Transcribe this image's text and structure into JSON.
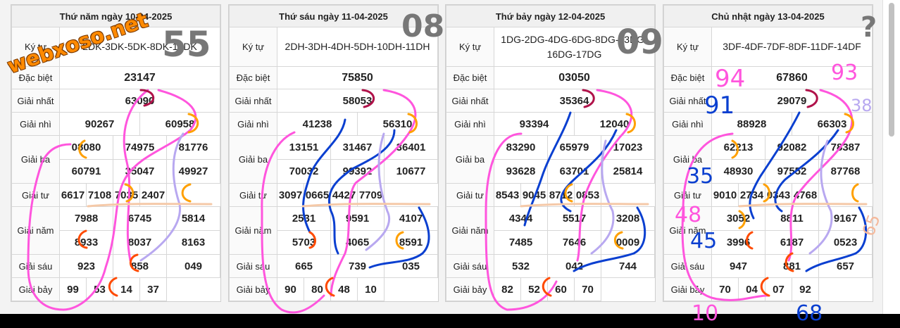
{
  "boards": [
    {
      "date": "Thứ năm ngày 10-04-2025",
      "kytu_label": "Ký tự",
      "kytu": "2DK-3DK-5DK-8DK-15DK",
      "rows": [
        {
          "label": "Đặc biệt",
          "values": [
            "23147"
          ]
        },
        {
          "label": "Giải nhất",
          "values": [
            "63090"
          ]
        },
        {
          "label": "Giải nhì",
          "values": [
            "90267",
            "60958"
          ]
        },
        {
          "label": "Giải ba",
          "values": [
            "08080",
            "74975",
            "81776",
            "60791",
            "35047",
            "49927"
          ]
        },
        {
          "label": "Giải tư",
          "values": [
            "6617",
            "7108",
            "7035",
            "2407"
          ]
        },
        {
          "label": "Giải năm",
          "values": [
            "7988",
            "6745",
            "5814",
            "8933",
            "8037",
            "8163"
          ]
        },
        {
          "label": "Giải sáu",
          "values": [
            "923",
            "858",
            "049"
          ]
        },
        {
          "label": "Giải bảy",
          "values": [
            "99",
            "53",
            "14",
            "37"
          ]
        }
      ]
    },
    {
      "date": "Thứ sáu ngày 11-04-2025",
      "kytu_label": "Ký tự",
      "kytu": "2DH-3DH-4DH-5DH-10DH-11DH",
      "rows": [
        {
          "label": "Đặc biệt",
          "values": [
            "75850"
          ]
        },
        {
          "label": "Giải nhất",
          "values": [
            "58053"
          ]
        },
        {
          "label": "Giải nhì",
          "values": [
            "41238",
            "56310"
          ]
        },
        {
          "label": "Giải ba",
          "values": [
            "13151",
            "31467",
            "36401",
            "70032",
            "99392",
            "10677"
          ]
        },
        {
          "label": "Giải tư",
          "values": [
            "3097",
            "0665",
            "4427",
            "7709"
          ]
        },
        {
          "label": "Giải năm",
          "values": [
            "2531",
            "9591",
            "4107",
            "5703",
            "4065",
            "8591"
          ]
        },
        {
          "label": "Giải sáu",
          "values": [
            "665",
            "739",
            "035"
          ]
        },
        {
          "label": "Giải bảy",
          "values": [
            "90",
            "80",
            "48",
            "10"
          ]
        }
      ]
    },
    {
      "date": "Thứ bảy ngày 12-04-2025",
      "kytu_label": "Ký tự",
      "kytu": "1DG-2DG-4DG-6DG-8DG-13DG-16DG-17DG",
      "rows": [
        {
          "label": "Đặc biệt",
          "values": [
            "03050"
          ]
        },
        {
          "label": "Giải nhất",
          "values": [
            "35364"
          ]
        },
        {
          "label": "Giải nhì",
          "values": [
            "93394",
            "12040"
          ]
        },
        {
          "label": "Giải ba",
          "values": [
            "83290",
            "65979",
            "17023",
            "93628",
            "63701",
            "25814"
          ]
        },
        {
          "label": "Giải tư",
          "values": [
            "8543",
            "9045",
            "8712",
            "0853"
          ]
        },
        {
          "label": "Giải năm",
          "values": [
            "4344",
            "5517",
            "3208",
            "7485",
            "7646",
            "0009"
          ]
        },
        {
          "label": "Giải sáu",
          "values": [
            "532",
            "042",
            "744"
          ]
        },
        {
          "label": "Giải bảy",
          "values": [
            "82",
            "52",
            "60",
            "70"
          ]
        }
      ]
    },
    {
      "date": "Chủ nhật ngày 13-04-2025",
      "kytu_label": "Ký tự",
      "kytu": "3DF-4DF-7DF-8DF-11DF-14DF",
      "rows": [
        {
          "label": "Đặc biệt",
          "values": [
            "67860"
          ]
        },
        {
          "label": "Giải nhất",
          "values": [
            "29079"
          ]
        },
        {
          "label": "Giải nhì",
          "values": [
            "88928",
            "66303"
          ]
        },
        {
          "label": "Giải ba",
          "values": [
            "62213",
            "92082",
            "78387",
            "48930",
            "97552",
            "87768"
          ]
        },
        {
          "label": "Giải tư",
          "values": [
            "9010",
            "2734",
            "0343",
            "4768"
          ]
        },
        {
          "label": "Giải năm",
          "values": [
            "3052",
            "8811",
            "9167",
            "3996",
            "6187",
            "0523"
          ]
        },
        {
          "label": "Giải sáu",
          "values": [
            "947",
            "881",
            "657"
          ]
        },
        {
          "label": "Giải bảy",
          "values": [
            "70",
            "04",
            "07",
            "92"
          ]
        }
      ]
    }
  ],
  "watermark": "webxoso.net",
  "handwritten": [
    "55",
    "08",
    "09",
    "?",
    "94",
    "93",
    "91",
    "38",
    "35",
    "48",
    "45",
    "65",
    "10",
    "68"
  ],
  "colors": {
    "special": "#d50000",
    "pen_pink": "#ff55dd",
    "pen_blue": "#0a3fd0",
    "pen_orange": "#ff8c00",
    "pen_gray": "#666666"
  }
}
